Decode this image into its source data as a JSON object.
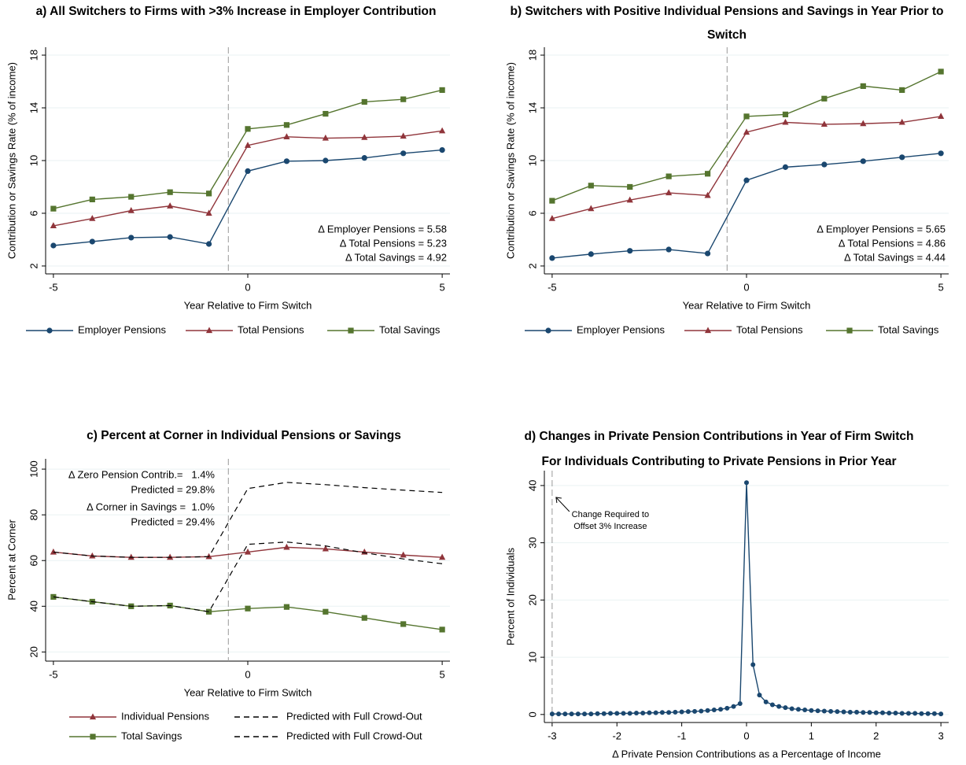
{
  "chart_data": [
    {
      "type": "line",
      "title": "a) All Switchers to Firms with >3% Increase in Employer Contribution",
      "xlabel": "Year Relative to Firm Switch",
      "ylabel": "Contribution or Savings Rate (% of income)",
      "x": [
        -5,
        -4,
        -3,
        -2,
        -1,
        0,
        1,
        2,
        3,
        4,
        5
      ],
      "series": [
        {
          "name": "Employer Pensions",
          "color": "#1a476f",
          "marker": "circle",
          "values": [
            3.55,
            3.85,
            4.15,
            4.2,
            3.67,
            9.2,
            9.95,
            10.0,
            10.2,
            10.55,
            10.8
          ]
        },
        {
          "name": "Total Pensions",
          "color": "#90353b",
          "marker": "triangle",
          "values": [
            5.05,
            5.6,
            6.2,
            6.55,
            6.0,
            11.15,
            11.8,
            11.7,
            11.75,
            11.85,
            12.25
          ]
        },
        {
          "name": "Total Savings",
          "color": "#55752f",
          "marker": "square",
          "values": [
            6.35,
            7.05,
            7.25,
            7.6,
            7.5,
            12.4,
            12.7,
            13.55,
            14.45,
            14.65,
            15.35
          ]
        }
      ],
      "xlim": [
        -5.2,
        5.2
      ],
      "ylim": [
        1.4,
        18.6
      ],
      "xticks": [
        -5,
        0,
        5
      ],
      "yticks": [
        2,
        6,
        10,
        14,
        18
      ],
      "grid": true,
      "vline": -0.5,
      "annotations": [
        "Δ Employer Pensions = 5.58",
        "Δ Total Pensions = 5.23",
        "Δ Total Savings = 4.92"
      ],
      "annotation_corner": "lower right",
      "legend_columns": 3
    },
    {
      "type": "line",
      "title": "b) Switchers with Positive Individual Pensions and Savings in Year Prior to Switch",
      "xlabel": "Year Relative to Firm Switch",
      "ylabel": "Contribution or Savings Rate (% of income)",
      "x": [
        -5,
        -4,
        -3,
        -2,
        -1,
        0,
        1,
        2,
        3,
        4,
        5
      ],
      "series": [
        {
          "name": "Employer Pensions",
          "color": "#1a476f",
          "marker": "circle",
          "values": [
            2.6,
            2.9,
            3.15,
            3.25,
            2.95,
            8.5,
            9.5,
            9.7,
            9.95,
            10.25,
            10.55
          ]
        },
        {
          "name": "Total Pensions",
          "color": "#90353b",
          "marker": "triangle",
          "values": [
            5.6,
            6.35,
            7.0,
            7.55,
            7.35,
            12.15,
            12.9,
            12.75,
            12.8,
            12.9,
            13.35
          ]
        },
        {
          "name": "Total Savings",
          "color": "#55752f",
          "marker": "square",
          "values": [
            6.95,
            8.1,
            8.0,
            8.8,
            9.0,
            13.35,
            13.5,
            14.7,
            15.65,
            15.35,
            16.75
          ]
        }
      ],
      "xlim": [
        -5.2,
        5.2
      ],
      "ylim": [
        1.4,
        18.6
      ],
      "xticks": [
        -5,
        0,
        5
      ],
      "yticks": [
        2,
        6,
        10,
        14,
        18
      ],
      "grid": true,
      "vline": -0.5,
      "annotations": [
        "Δ Employer Pensions = 5.65",
        "Δ Total Pensions = 4.86",
        "Δ Total Savings = 4.44"
      ],
      "annotation_corner": "lower right",
      "legend_columns": 3
    },
    {
      "type": "line",
      "title": "c) Percent at Corner in Individual Pensions or Savings",
      "xlabel": "Year Relative to Firm Switch",
      "ylabel": "Percent at Corner",
      "x": [
        -5,
        -4,
        -3,
        -2,
        -1,
        0,
        1,
        2,
        3,
        4,
        5
      ],
      "series": [
        {
          "name": "Individual Pensions",
          "color": "#90353b",
          "marker": "triangle",
          "values": [
            63.7,
            62.0,
            61.4,
            61.4,
            61.7,
            63.7,
            65.8,
            65.1,
            63.7,
            62.4,
            61.4
          ]
        },
        {
          "name": "Predicted with Full Crowd-Out",
          "color": "#000000",
          "dash": true,
          "values": [
            63.7,
            62.0,
            61.4,
            61.4,
            61.7,
            91.5,
            94.2,
            93.2,
            91.9,
            90.8,
            89.8
          ]
        },
        {
          "name": "Total Savings",
          "color": "#55752f",
          "marker": "square",
          "values": [
            44.1,
            42.0,
            40.0,
            40.3,
            37.6,
            39.0,
            39.7,
            37.6,
            34.9,
            32.2,
            29.8
          ]
        },
        {
          "name": "Predicted with Full Crowd-Out",
          "color": "#000000",
          "dash": true,
          "values": [
            44.1,
            42.0,
            40.0,
            40.3,
            37.6,
            67.1,
            68.1,
            66.4,
            63.4,
            60.7,
            58.6
          ]
        }
      ],
      "xlim": [
        -5.2,
        5.2
      ],
      "ylim": [
        16,
        104.5
      ],
      "xticks": [
        -5,
        0,
        5
      ],
      "yticks": [
        20,
        40,
        60,
        80,
        100
      ],
      "grid": true,
      "vline": -0.5,
      "annotations": [
        "Δ Zero Pension Contrib.=   1.4%",
        "Predicted = 29.8%",
        "Δ Corner in Savings =  1.0%",
        "Predicted = 29.4%"
      ],
      "annotation_corner": "upper left",
      "legend_columns": 2
    },
    {
      "type": "line",
      "title": "d) Changes in Private Pension Contributions in Year of Firm Switch",
      "subtitle": "For Individuals Contributing to Private Pensions in Prior Year",
      "xlabel": "Δ Private Pension Contributions as a Percentage of Income",
      "ylabel": "Percent of Individuals",
      "x": [
        -3.0,
        -2.9,
        -2.8,
        -2.7,
        -2.6,
        -2.5,
        -2.4,
        -2.3,
        -2.2,
        -2.1,
        -2.0,
        -1.9,
        -1.8,
        -1.7,
        -1.6,
        -1.5,
        -1.4,
        -1.3,
        -1.2,
        -1.1,
        -1.0,
        -0.9,
        -0.8,
        -0.7,
        -0.6,
        -0.5,
        -0.4,
        -0.3,
        -0.2,
        -0.1,
        0.0,
        0.1,
        0.2,
        0.3,
        0.4,
        0.5,
        0.6,
        0.7,
        0.8,
        0.9,
        1.0,
        1.1,
        1.2,
        1.3,
        1.4,
        1.5,
        1.6,
        1.7,
        1.8,
        1.9,
        2.0,
        2.1,
        2.2,
        2.3,
        2.4,
        2.5,
        2.6,
        2.7,
        2.8,
        2.9,
        3.0
      ],
      "values": [
        0.1,
        0.1,
        0.1,
        0.1,
        0.1,
        0.1,
        0.1,
        0.15,
        0.15,
        0.2,
        0.2,
        0.2,
        0.2,
        0.25,
        0.25,
        0.3,
        0.3,
        0.35,
        0.35,
        0.4,
        0.45,
        0.5,
        0.55,
        0.6,
        0.7,
        0.8,
        0.9,
        1.1,
        1.4,
        1.9,
        40.5,
        8.7,
        3.4,
        2.2,
        1.7,
        1.4,
        1.2,
        1.0,
        0.9,
        0.8,
        0.7,
        0.65,
        0.6,
        0.55,
        0.5,
        0.45,
        0.4,
        0.4,
        0.35,
        0.35,
        0.3,
        0.3,
        0.25,
        0.25,
        0.2,
        0.2,
        0.2,
        0.15,
        0.15,
        0.15,
        0.1
      ],
      "color": "#1a476f",
      "marker": "circle",
      "xlim": [
        -3.12,
        3.12
      ],
      "ylim": [
        -1.4,
        42.6
      ],
      "xticks": [
        -3,
        -2,
        -1,
        0,
        1,
        2,
        3
      ],
      "yticks": [
        0,
        10,
        20,
        30,
        40
      ],
      "grid": true,
      "vline": -3,
      "annotations": [
        "Change Required to",
        "Offset 3% Increase"
      ],
      "annotation_corner": "upper left"
    }
  ]
}
